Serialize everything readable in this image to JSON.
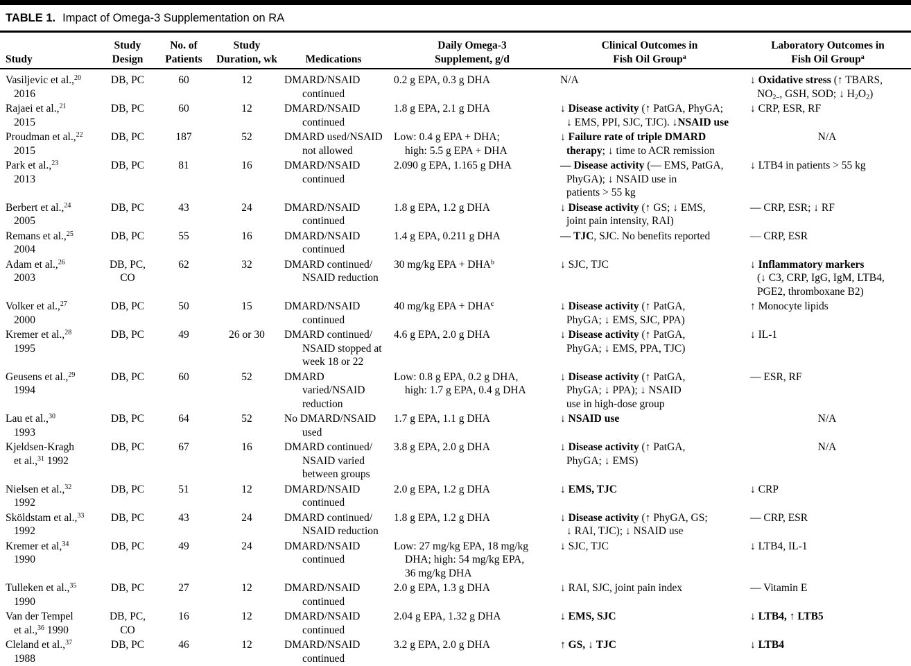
{
  "title": {
    "label": "TABLE 1.",
    "text": "Impact of Omega-3 Supplementation on RA"
  },
  "columns": [
    {
      "id": "study",
      "label": "Study"
    },
    {
      "id": "design",
      "label": "Study\nDesign"
    },
    {
      "id": "patients",
      "label": "No. of\nPatients"
    },
    {
      "id": "duration",
      "label": "Study\nDuration, wk"
    },
    {
      "id": "medications",
      "label": "Medications"
    },
    {
      "id": "omega3",
      "label": "Daily Omega-3\nSupplement, g/d"
    },
    {
      "id": "clinical",
      "label": "Clinical Outcomes in\nFish Oil Group^{a}"
    },
    {
      "id": "laboratory",
      "label": "Laboratory Outcomes in\nFish Oil Group^{a}"
    }
  ],
  "rows": [
    {
      "study": "Vasiljevic et al.,^{20}\n2016",
      "design": "DB, PC",
      "patients": "60",
      "duration": "12",
      "medications": "DMARD/NSAID\ncontinued",
      "omega3": "0.2 g EPA, 0.3 g DHA",
      "clinical": "N/A",
      "laboratory": "↓ **Oxidative stress** (↑ TBARS,\nNO~{2–}, GSH, SOD; ↓ H~{2}O~{2})"
    },
    {
      "study": "Rajaei et al.,^{21}\n2015",
      "design": "DB, PC",
      "patients": "60",
      "duration": "12",
      "medications": "DMARD/NSAID\ncontinued",
      "omega3": "1.8 g EPA, 2.1 g DHA",
      "clinical": "↓ **Disease activity** (↑ PatGA, PhyGA;\n↓ EMS, PPI, SJC, TJC). **↓NSAID use**",
      "laboratory": "↓ CRP, ESR, RF"
    },
    {
      "study": "Proudman et al.,^{22}\n2015",
      "design": "DB, PC",
      "patients": "187",
      "duration": "52",
      "medications": "DMARD used/NSAID\nnot allowed",
      "omega3": "Low: 0.4 g EPA + DHA;\nhigh: 5.5 g EPA + DHA",
      "clinical": "↓ **Failure rate of triple DMARD**\n**therapy**; ↓ time to ACR remission",
      "laboratory": "N/A"
    },
    {
      "study": "Park et al.,^{23}\n2013",
      "design": "DB, PC",
      "patients": "81",
      "duration": "16",
      "medications": "DMARD/NSAID\ncontinued",
      "omega3": "2.090 g EPA, 1.165 g DHA",
      "clinical": "**— Disease activity** (— EMS, PatGA,\nPhyGA); ↓ NSAID use in\npatients > 55 kg",
      "laboratory": "↓ LTB4 in patients > 55 kg"
    },
    {
      "study": "Berbert et al.,^{24}\n2005",
      "design": "DB, PC",
      "patients": "43",
      "duration": "24",
      "medications": "DMARD/NSAID\ncontinued",
      "omega3": "1.8 g EPA, 1.2 g DHA",
      "clinical": "↓ **Disease activity** (↑ GS; ↓ EMS,\njoint pain intensity, RAI)",
      "laboratory": "— CRP, ESR; ↓ RF"
    },
    {
      "study": "Remans et al.,^{25}\n2004",
      "design": "DB, PC",
      "patients": "55",
      "duration": "16",
      "medications": "DMARD/NSAID\ncontinued",
      "omega3": "1.4 g EPA, 0.211 g DHA",
      "clinical": "**— TJC**, SJC. No benefits reported",
      "laboratory": "— CRP, ESR"
    },
    {
      "study": "Adam et al.,^{26}\n2003",
      "design": "DB, PC, CO",
      "patients": "62",
      "duration": "32",
      "medications": "DMARD continued/\nNSAID reduction",
      "omega3": "30 mg/kg EPA + DHA^{b}",
      "clinical": "↓ SJC, TJC",
      "laboratory": "↓ **Inflammatory markers**\n(↓ C3, CRP, IgG, IgM, LTB4,\nPGE2, thromboxane B2)"
    },
    {
      "study": "Volker et al.,^{27}\n2000",
      "design": "DB, PC",
      "patients": "50",
      "duration": "15",
      "medications": "DMARD/NSAID\ncontinued",
      "omega3": "40 mg/kg EPA + DHA**^{c}**",
      "clinical": "↓ **Disease activity** (↑ PatGA,\nPhyGA; ↓ EMS, SJC, PPA)",
      "laboratory": "↑ Monocyte lipids"
    },
    {
      "study": "Kremer et al.,^{28}\n1995",
      "design": "DB, PC",
      "patients": "49",
      "duration": "26 or 30",
      "medications": "DMARD continued/\nNSAID stopped at\nweek 18 or 22",
      "omega3": "4.6 g EPA, 2.0 g DHA",
      "clinical": "↓ **Disease activity** (↑ PatGA,\nPhyGA; ↓ EMS, PPA, TJC)",
      "laboratory": "↓ IL-1"
    },
    {
      "study": "Geusens et al.,^{29}\n1994",
      "design": "DB, PC",
      "patients": "60",
      "duration": "52",
      "medications": "DMARD varied/NSAID\nreduction",
      "omega3": "Low: 0.8 g EPA, 0.2 g DHA,\nhigh: 1.7 g EPA, 0.4 g DHA",
      "clinical": "↓ **Disease activity** (↑ PatGA,\nPhyGA; ↓ PPA); ↓ NSAID\nuse in high-dose group",
      "laboratory": "— ESR, RF"
    },
    {
      "study": "Lau et al.,^{30}\n1993",
      "design": "DB, PC",
      "patients": "64",
      "duration": "52",
      "medications": "No DMARD/NSAID\nused",
      "omega3": "1.7 g EPA, 1.1 g DHA",
      "clinical": "↓ **NSAID use**",
      "laboratory": "N/A"
    },
    {
      "study": "Kjeldsen-Kragh\net al.,^{31} 1992",
      "design": "DB, PC",
      "patients": "67",
      "duration": "16",
      "medications": "DMARD continued/\nNSAID varied\nbetween groups",
      "omega3": "3.8 g EPA, 2.0 g DHA",
      "clinical": "↓ **Disease activity** (↑ PatGA,\nPhyGA; ↓ EMS)",
      "laboratory": "N/A"
    },
    {
      "study": "Nielsen et al.,^{32}\n1992",
      "design": "DB, PC",
      "patients": "51",
      "duration": "12",
      "medications": "DMARD/NSAID\ncontinued",
      "omega3": "2.0 g EPA, 1.2 g DHA",
      "clinical": "↓ **EMS, TJC**",
      "laboratory": "↓ CRP"
    },
    {
      "study": "Sköldstam et al.,^{33}\n1992",
      "design": "DB, PC",
      "patients": "43",
      "duration": "24",
      "medications": "DMARD continued/\nNSAID reduction",
      "omega3": "1.8 g EPA, 1.2 g DHA",
      "clinical": "↓ **Disease activity** (↑ PhyGA, GS;\n↓ RAI, TJC); ↓ NSAID use",
      "laboratory": "— CRP, ESR"
    },
    {
      "study": "Kremer et al,^{34}\n1990",
      "design": "DB, PC",
      "patients": "49",
      "duration": "24",
      "medications": "DMARD/NSAID\ncontinued",
      "omega3": "Low: 27 mg/kg EPA, 18 mg/kg\nDHA; high: 54 mg/kg EPA,\n36 mg/kg DHA",
      "clinical": "↓ SJC, TJC",
      "laboratory": "↓ LTB4, IL-1"
    },
    {
      "study": "Tulleken et al.,^{35}\n1990",
      "design": "DB, PC",
      "patients": "27",
      "duration": "12",
      "medications": "DMARD/NSAID\ncontinued",
      "omega3": "2.0 g EPA, 1.3 g DHA",
      "clinical": "↓ RAI, SJC, joint pain index",
      "laboratory": "— Vitamin E"
    },
    {
      "study": "Van der Tempel\net al.,^{36} 1990",
      "design": "DB, PC, CO",
      "patients": "16",
      "duration": "12",
      "medications": "DMARD/NSAID\ncontinued",
      "omega3": "2.04 g EPA, 1.32 g DHA",
      "clinical": "↓ **EMS, SJC**",
      "laboratory": "↓ **LTB4,** ↑ **LTB5**"
    },
    {
      "study": "Cleland et al.,^{37}\n1988",
      "design": "DB, PC",
      "patients": "46",
      "duration": "12",
      "medications": "DMARD/NSAID\ncontinued",
      "omega3": "3.2 g EPA, 2.0 g DHA",
      "clinical": "↑ **GS,** ↓ **TJC**",
      "laboratory": "↓ **LTB4**"
    }
  ]
}
